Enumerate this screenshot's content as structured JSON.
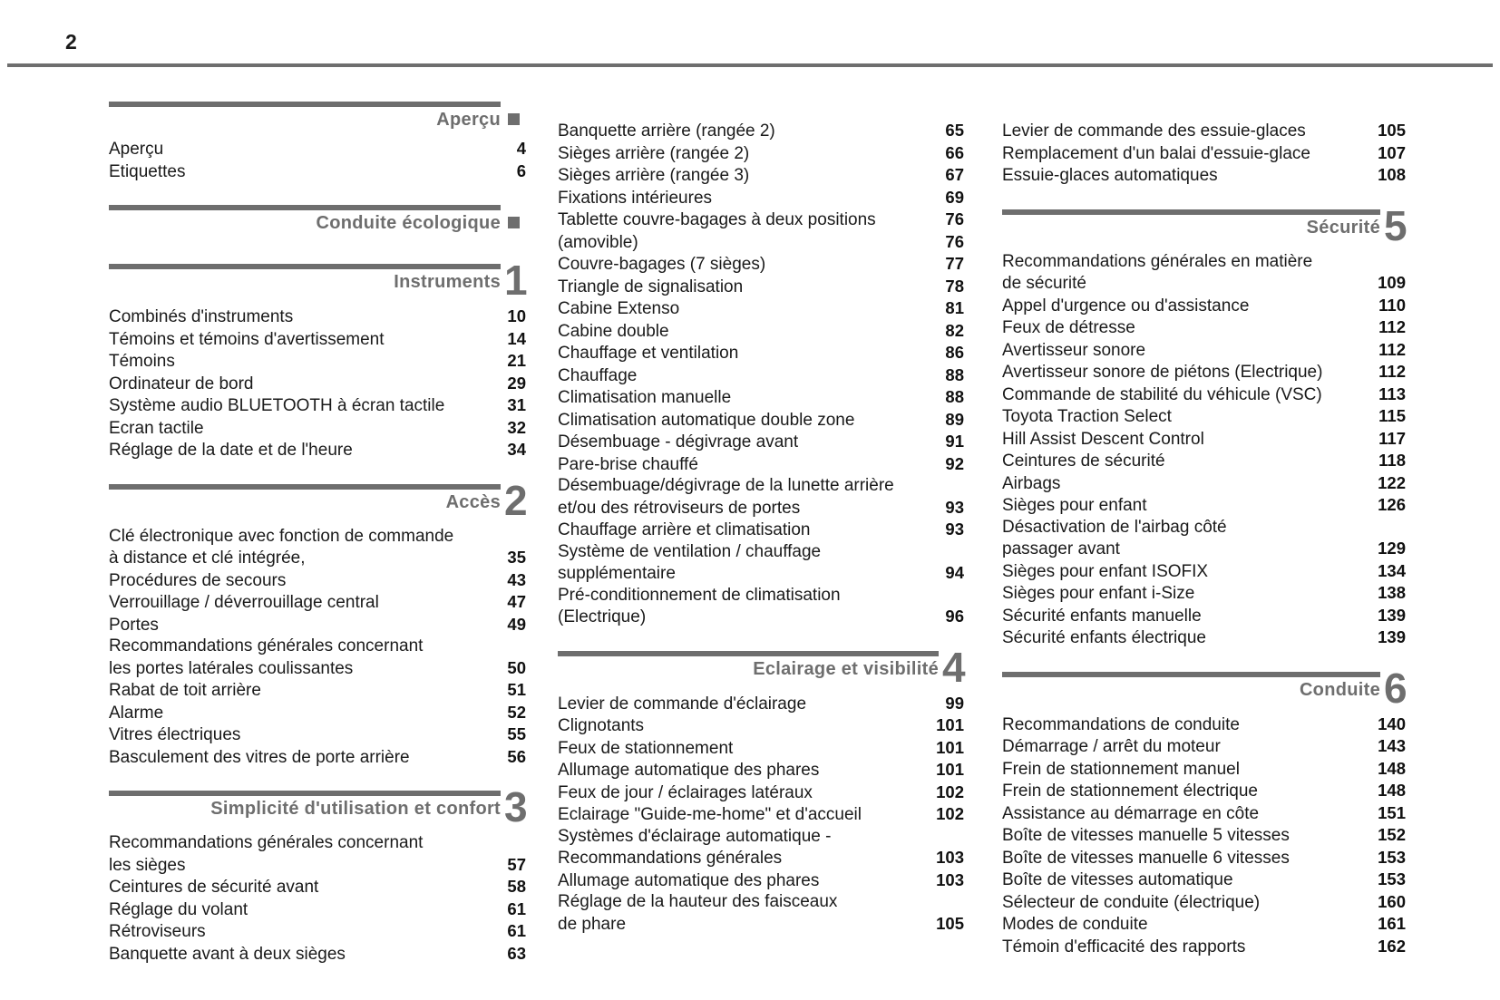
{
  "page": {
    "number": "2"
  },
  "colors": {
    "accent_gray": "#6e6e6e",
    "text": "#1a1a1a"
  },
  "columns": [
    {
      "blocks": [
        {
          "kind": "header",
          "title": "Aperçu",
          "marker": "square"
        },
        {
          "kind": "entry",
          "lines": [
            {
              "t": "Aperçu",
              "p": "4"
            }
          ]
        },
        {
          "kind": "entry",
          "lines": [
            {
              "t": "Etiquettes",
              "p": "6"
            }
          ]
        },
        {
          "kind": "header",
          "title": "Conduite écologique",
          "marker": "square"
        },
        {
          "kind": "header",
          "title": "Instruments",
          "marker": "digit",
          "num": "1"
        },
        {
          "kind": "entry",
          "lines": [
            {
              "t": "Combinés d'instruments",
              "p": "10"
            }
          ]
        },
        {
          "kind": "entry",
          "lines": [
            {
              "t": "Témoins et témoins d'avertissement",
              "p": "14"
            }
          ]
        },
        {
          "kind": "entry",
          "lines": [
            {
              "t": "Témoins",
              "p": "21"
            }
          ]
        },
        {
          "kind": "entry",
          "lines": [
            {
              "t": "Ordinateur de bord",
              "p": "29"
            }
          ]
        },
        {
          "kind": "entry",
          "lines": [
            {
              "t": "Système audio BLUETOOTH à écran tactile",
              "p": "31"
            }
          ]
        },
        {
          "kind": "entry",
          "lines": [
            {
              "t": "Ecran tactile",
              "p": "32"
            }
          ]
        },
        {
          "kind": "entry",
          "lines": [
            {
              "t": "Réglage de la date et de l'heure",
              "p": "34"
            }
          ]
        },
        {
          "kind": "header",
          "title": "Accès",
          "marker": "digit",
          "num": "2"
        },
        {
          "kind": "entry",
          "lines": [
            {
              "t": "Clé électronique avec fonction de commande",
              "p": ""
            },
            {
              "t": "à distance et clé intégrée,",
              "p": "35"
            }
          ]
        },
        {
          "kind": "entry",
          "lines": [
            {
              "t": "Procédures de secours",
              "p": "43"
            }
          ]
        },
        {
          "kind": "entry",
          "lines": [
            {
              "t": "Verrouillage / déverrouillage central",
              "p": "47"
            }
          ]
        },
        {
          "kind": "entry",
          "lines": [
            {
              "t": "Portes",
              "p": "49"
            }
          ]
        },
        {
          "kind": "entry",
          "lines": [
            {
              "t": "Recommandations générales concernant",
              "p": ""
            },
            {
              "t": "les portes latérales coulissantes",
              "p": "50"
            }
          ]
        },
        {
          "kind": "entry",
          "lines": [
            {
              "t": "Rabat de toit arrière",
              "p": "51"
            }
          ]
        },
        {
          "kind": "entry",
          "lines": [
            {
              "t": "Alarme",
              "p": "52"
            }
          ]
        },
        {
          "kind": "entry",
          "lines": [
            {
              "t": "Vitres électriques",
              "p": "55"
            }
          ]
        },
        {
          "kind": "entry",
          "lines": [
            {
              "t": "Basculement des vitres de porte arrière",
              "p": "56"
            }
          ]
        },
        {
          "kind": "header",
          "title": "Simplicité d'utilisation et confort",
          "marker": "digit",
          "num": "3"
        },
        {
          "kind": "entry",
          "lines": [
            {
              "t": "Recommandations générales concernant",
              "p": ""
            },
            {
              "t": "les sièges",
              "p": "57"
            }
          ]
        },
        {
          "kind": "entry",
          "lines": [
            {
              "t": "Ceintures de sécurité avant",
              "p": "58"
            }
          ]
        },
        {
          "kind": "entry",
          "lines": [
            {
              "t": "Réglage du volant",
              "p": "61"
            }
          ]
        },
        {
          "kind": "entry",
          "lines": [
            {
              "t": "Rétroviseurs",
              "p": "61"
            }
          ]
        },
        {
          "kind": "entry",
          "lines": [
            {
              "t": "Banquette avant à deux sièges",
              "p": "63"
            }
          ]
        }
      ]
    },
    {
      "blocks": [
        {
          "kind": "entry",
          "lines": [
            {
              "t": "Banquette arrière (rangée 2)",
              "p": "65"
            }
          ]
        },
        {
          "kind": "entry",
          "lines": [
            {
              "t": "Sièges arrière (rangée 2)",
              "p": "66"
            }
          ]
        },
        {
          "kind": "entry",
          "lines": [
            {
              "t": "Sièges arrière (rangée 3)",
              "p": "67"
            }
          ]
        },
        {
          "kind": "entry",
          "lines": [
            {
              "t": "Fixations intérieures",
              "p": "69"
            }
          ]
        },
        {
          "kind": "entry",
          "lines": [
            {
              "t": "Tablette couvre-bagages à deux positions",
              "p": "76"
            },
            {
              "t": "(amovible)",
              "p": "76"
            }
          ]
        },
        {
          "kind": "entry",
          "lines": [
            {
              "t": "Couvre-bagages (7 sièges)",
              "p": "77"
            }
          ]
        },
        {
          "kind": "entry",
          "lines": [
            {
              "t": "Triangle de signalisation",
              "p": "78"
            }
          ]
        },
        {
          "kind": "entry",
          "lines": [
            {
              "t": "Cabine Extenso",
              "p": "81"
            }
          ]
        },
        {
          "kind": "entry",
          "lines": [
            {
              "t": "Cabine double",
              "p": "82"
            }
          ]
        },
        {
          "kind": "entry",
          "lines": [
            {
              "t": "Chauffage et ventilation",
              "p": "86"
            }
          ]
        },
        {
          "kind": "entry",
          "lines": [
            {
              "t": "Chauffage",
              "p": "88"
            }
          ]
        },
        {
          "kind": "entry",
          "lines": [
            {
              "t": "Climatisation manuelle",
              "p": "88"
            }
          ]
        },
        {
          "kind": "entry",
          "lines": [
            {
              "t": "Climatisation automatique double zone",
              "p": "89"
            }
          ]
        },
        {
          "kind": "entry",
          "lines": [
            {
              "t": "Désembuage - dégivrage avant",
              "p": "91"
            }
          ]
        },
        {
          "kind": "entry",
          "lines": [
            {
              "t": "Pare-brise chauffé",
              "p": "92"
            }
          ]
        },
        {
          "kind": "entry",
          "lines": [
            {
              "t": "Désembuage/dégivrage de la lunette arrière",
              "p": ""
            },
            {
              "t": "et/ou des rétroviseurs de portes",
              "p": "93"
            }
          ]
        },
        {
          "kind": "entry",
          "lines": [
            {
              "t": "Chauffage arrière et climatisation",
              "p": "93"
            }
          ]
        },
        {
          "kind": "entry",
          "lines": [
            {
              "t": "Système de ventilation / chauffage",
              "p": ""
            },
            {
              "t": "supplémentaire",
              "p": "94"
            }
          ]
        },
        {
          "kind": "entry",
          "lines": [
            {
              "t": "Pré-conditionnement de climatisation",
              "p": ""
            },
            {
              "t": "(Electrique)",
              "p": "96"
            }
          ]
        },
        {
          "kind": "header",
          "title": "Eclairage et visibilité",
          "marker": "digit",
          "num": "4"
        },
        {
          "kind": "entry",
          "lines": [
            {
              "t": "Levier de commande d'éclairage",
              "p": "99"
            }
          ]
        },
        {
          "kind": "entry",
          "lines": [
            {
              "t": "Clignotants",
              "p": "101"
            }
          ]
        },
        {
          "kind": "entry",
          "lines": [
            {
              "t": "Feux de stationnement",
              "p": "101"
            }
          ]
        },
        {
          "kind": "entry",
          "lines": [
            {
              "t": "Allumage automatique des phares",
              "p": "101"
            }
          ]
        },
        {
          "kind": "entry",
          "lines": [
            {
              "t": "Feux de jour / éclairages latéraux",
              "p": "102"
            }
          ]
        },
        {
          "kind": "entry",
          "lines": [
            {
              "t": "Eclairage \"Guide-me-home\" et d'accueil",
              "p": "102"
            }
          ]
        },
        {
          "kind": "entry",
          "lines": [
            {
              "t": "Systèmes d'éclairage automatique -",
              "p": ""
            },
            {
              "t": "Recommandations générales",
              "p": "103"
            }
          ]
        },
        {
          "kind": "entry",
          "lines": [
            {
              "t": "Allumage automatique des phares",
              "p": "103"
            }
          ]
        },
        {
          "kind": "entry",
          "lines": [
            {
              "t": "Réglage de la hauteur des faisceaux",
              "p": ""
            },
            {
              "t": "de phare",
              "p": "105"
            }
          ]
        }
      ]
    },
    {
      "blocks": [
        {
          "kind": "entry",
          "lines": [
            {
              "t": "Levier de commande des essuie-glaces",
              "p": "105"
            }
          ]
        },
        {
          "kind": "entry",
          "lines": [
            {
              "t": "Remplacement d'un balai d'essuie-glace",
              "p": "107"
            }
          ]
        },
        {
          "kind": "entry",
          "lines": [
            {
              "t": "Essuie-glaces automatiques",
              "p": "108"
            }
          ]
        },
        {
          "kind": "header",
          "title": "Sécurité",
          "marker": "digit",
          "num": "5"
        },
        {
          "kind": "entry",
          "lines": [
            {
              "t": "Recommandations générales en matière",
              "p": ""
            },
            {
              "t": "de sécurité",
              "p": "109"
            }
          ]
        },
        {
          "kind": "entry",
          "lines": [
            {
              "t": "Appel d'urgence ou d'assistance",
              "p": "110"
            }
          ]
        },
        {
          "kind": "entry",
          "lines": [
            {
              "t": "Feux de détresse",
              "p": "112"
            }
          ]
        },
        {
          "kind": "entry",
          "lines": [
            {
              "t": "Avertisseur sonore",
              "p": "112"
            }
          ]
        },
        {
          "kind": "entry",
          "lines": [
            {
              "t": "Avertisseur sonore de piétons (Electrique)",
              "p": "112"
            }
          ]
        },
        {
          "kind": "entry",
          "lines": [
            {
              "t": "Commande de stabilité du véhicule (VSC)",
              "p": "113"
            }
          ]
        },
        {
          "kind": "entry",
          "lines": [
            {
              "t": "Toyota Traction Select",
              "p": "115"
            }
          ]
        },
        {
          "kind": "entry",
          "lines": [
            {
              "t": "Hill Assist Descent Control",
              "p": "117"
            }
          ]
        },
        {
          "kind": "entry",
          "lines": [
            {
              "t": "Ceintures de sécurité",
              "p": "118"
            }
          ]
        },
        {
          "kind": "entry",
          "lines": [
            {
              "t": "Airbags",
              "p": "122"
            }
          ]
        },
        {
          "kind": "entry",
          "lines": [
            {
              "t": "Sièges pour enfant",
              "p": "126"
            }
          ]
        },
        {
          "kind": "entry",
          "lines": [
            {
              "t": "Désactivation de l'airbag côté",
              "p": ""
            },
            {
              "t": "passager avant",
              "p": "129"
            }
          ]
        },
        {
          "kind": "entry",
          "lines": [
            {
              "t": "Sièges pour enfant ISOFIX",
              "p": "134"
            }
          ]
        },
        {
          "kind": "entry",
          "lines": [
            {
              "t": "Sièges pour enfant i-Size",
              "p": "138"
            }
          ]
        },
        {
          "kind": "entry",
          "lines": [
            {
              "t": "Sécurité enfants manuelle",
              "p": "139"
            }
          ]
        },
        {
          "kind": "entry",
          "lines": [
            {
              "t": "Sécurité enfants électrique",
              "p": "139"
            }
          ]
        },
        {
          "kind": "header",
          "title": "Conduite",
          "marker": "digit",
          "num": "6"
        },
        {
          "kind": "entry",
          "lines": [
            {
              "t": "Recommandations de conduite",
              "p": "140"
            }
          ]
        },
        {
          "kind": "entry",
          "lines": [
            {
              "t": "Démarrage / arrêt du moteur",
              "p": "143"
            }
          ]
        },
        {
          "kind": "entry",
          "lines": [
            {
              "t": "Frein de stationnement manuel",
              "p": "148"
            }
          ]
        },
        {
          "kind": "entry",
          "lines": [
            {
              "t": "Frein de stationnement électrique",
              "p": "148"
            }
          ]
        },
        {
          "kind": "entry",
          "lines": [
            {
              "t": "Assistance au démarrage en côte",
              "p": "151"
            }
          ]
        },
        {
          "kind": "entry",
          "lines": [
            {
              "t": "Boîte de vitesses manuelle 5 vitesses",
              "p": "152"
            }
          ]
        },
        {
          "kind": "entry",
          "lines": [
            {
              "t": "Boîte de vitesses manuelle 6 vitesses",
              "p": "153"
            }
          ]
        },
        {
          "kind": "entry",
          "lines": [
            {
              "t": "Boîte de vitesses automatique",
              "p": "153"
            }
          ]
        },
        {
          "kind": "entry",
          "lines": [
            {
              "t": "Sélecteur de conduite (électrique)",
              "p": "160"
            }
          ]
        },
        {
          "kind": "entry",
          "lines": [
            {
              "t": "Modes de conduite",
              "p": "161"
            }
          ]
        },
        {
          "kind": "entry",
          "lines": [
            {
              "t": "Témoin d'efficacité des rapports",
              "p": "162"
            }
          ]
        }
      ]
    }
  ]
}
